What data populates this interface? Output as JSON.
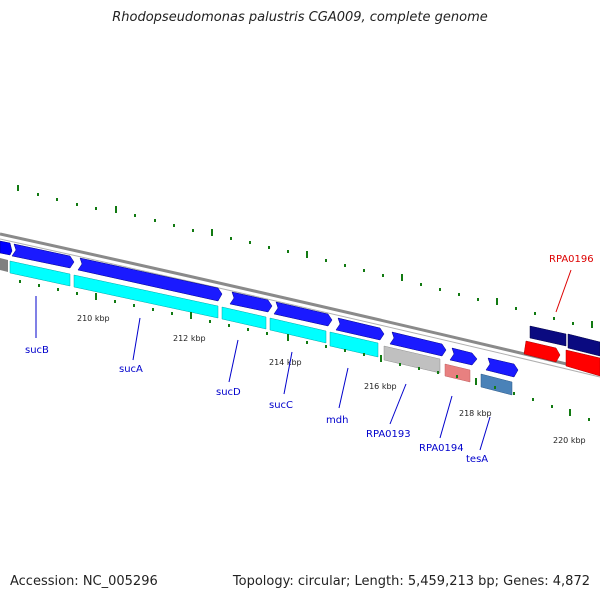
{
  "title": "Rhodopseudomonas palustris CGA009, complete genome",
  "footer": {
    "accession": "Accession: NC_005296",
    "topology": "Topology: circular; Length: 5,459,213 bp; Genes: 4,872"
  },
  "tick_labels": [
    "210 kbp",
    "212 kbp",
    "214 kbp",
    "216 kbp",
    "218 kbp",
    "220 kbp"
  ],
  "gene_labels": [
    "sucB",
    "sucA",
    "sucD",
    "sucC",
    "mdh",
    "RPA0193",
    "RPA0194",
    "tesA",
    "RPA0196"
  ],
  "colors": {
    "forward_gene": "#0000ff",
    "reverse_cds": "#00ffff",
    "label_blue": "#0000cc",
    "label_red": "#dd0000",
    "tick_green": "#127a12",
    "backbone": "#8a8a8a"
  }
}
